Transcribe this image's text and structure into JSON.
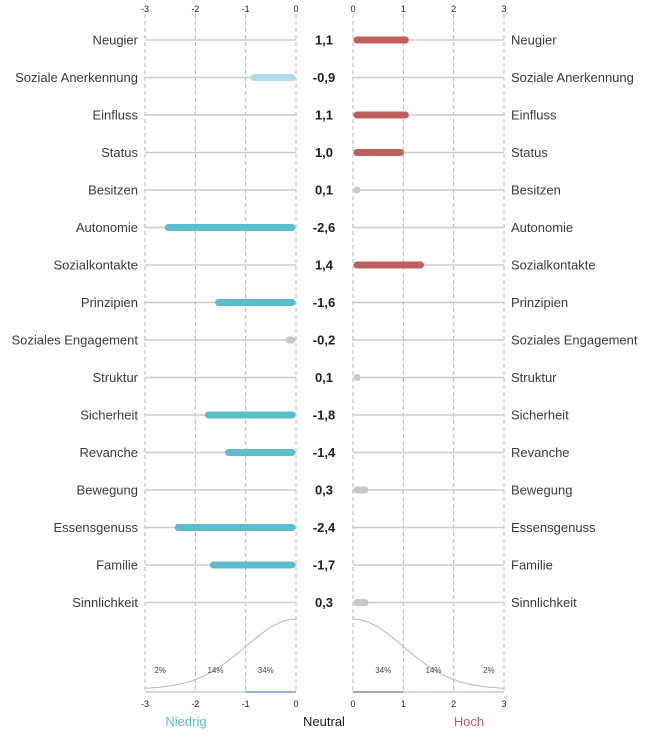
{
  "chart_data": {
    "type": "bar",
    "orientation": "horizontal-diverging",
    "categories": [
      "Neugier",
      "Soziale Anerkennung",
      "Einfluss",
      "Status",
      "Besitzen",
      "Autonomie",
      "Sozialkontakte",
      "Prinzipien",
      "Soziales Engagement",
      "Struktur",
      "Sicherheit",
      "Revanche",
      "Bewegung",
      "Essensgenuss",
      "Familie",
      "Sinnlichkeit"
    ],
    "values": [
      1.1,
      -0.9,
      1.1,
      1.0,
      0.1,
      -2.6,
      1.4,
      -1.6,
      -0.2,
      0.1,
      -1.8,
      -1.4,
      0.3,
      -2.4,
      -1.7,
      0.3
    ],
    "value_labels": [
      "1,1",
      "-0,9",
      "1,1",
      "1,0",
      "0,1",
      "-2,6",
      "1,4",
      "-1,6",
      "-0,2",
      "0,1",
      "-1,8",
      "-1,4",
      "0,3",
      "-2,4",
      "-1,7",
      "0,3"
    ],
    "left_axis": {
      "range": [
        -3,
        0
      ],
      "ticks": [
        -3,
        -2,
        -1,
        0
      ],
      "tick_labels": [
        "-3",
        "-2",
        "-1",
        "0"
      ]
    },
    "right_axis": {
      "range": [
        0,
        3
      ],
      "ticks": [
        0,
        1,
        2,
        3
      ],
      "tick_labels": [
        "0",
        "1",
        "2",
        "3"
      ]
    },
    "distribution_labels": {
      "left": [
        "2%",
        "14%",
        "34%"
      ],
      "right": [
        "34%",
        "14%",
        "2%"
      ]
    },
    "footer": {
      "low": "Niedrig",
      "neutral": "Neutral",
      "high": "Hoch"
    },
    "neutral_threshold": 0.5,
    "colors": {
      "low_strong": "#5bbccc",
      "low_weak": "#b3dde4",
      "high": "#bf5e5e",
      "neutral": "#c8c8c8",
      "track": "#cdcdcd",
      "grid": "#b3b3b3",
      "low_text": "#5bbccc",
      "high_text": "#bf5e5e",
      "neutral_text": "#1e1e1e"
    }
  }
}
